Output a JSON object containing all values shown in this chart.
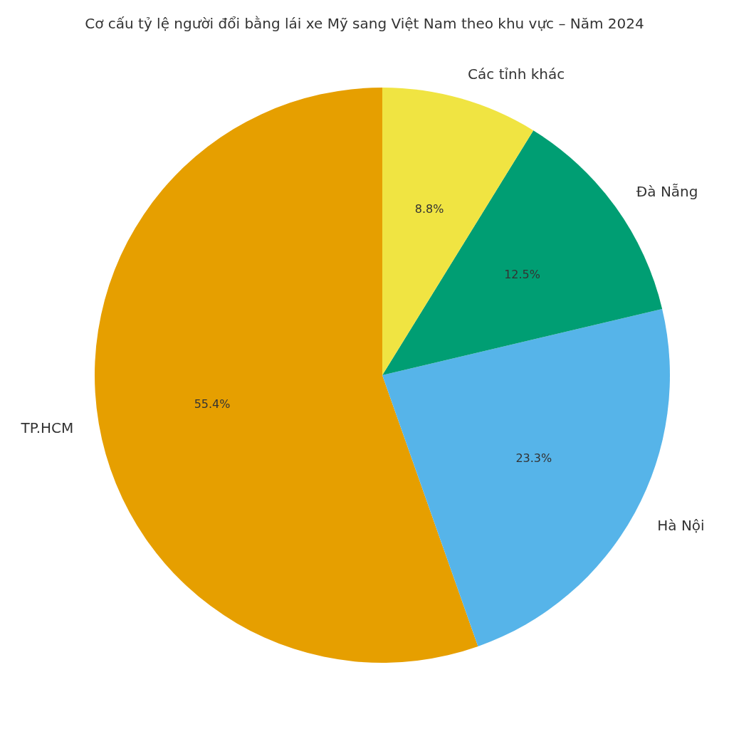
{
  "chart_data": {
    "type": "pie",
    "title": "Cơ cấu tỷ lệ người đổi bằng lái xe Mỹ sang Việt Nam theo khu vực – Năm 2024",
    "categories": [
      "TP.HCM",
      "Hà Nội",
      "Đà Nẵng",
      "Các tỉnh khác"
    ],
    "values": [
      55.4,
      23.3,
      12.5,
      8.8
    ],
    "colors": [
      "#e69f00",
      "#56b4e9",
      "#009e73",
      "#f0e442"
    ],
    "value_labels": [
      "55.4%",
      "23.3%",
      "12.5%",
      "8.8%"
    ],
    "legend": false
  }
}
